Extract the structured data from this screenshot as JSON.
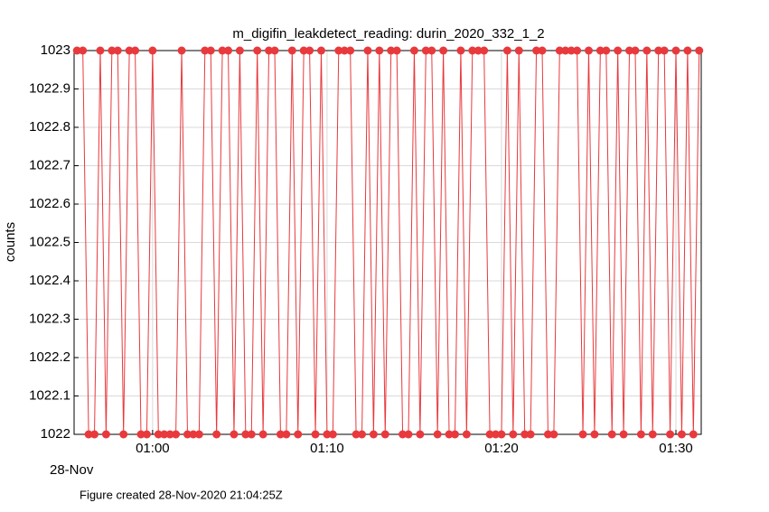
{
  "chart_data": {
    "type": "line",
    "title": "m_digifin_leakdetect_reading: durin_2020_332_1_2",
    "ylabel": "counts",
    "date_label": "28-Nov",
    "footer": "Figure created 28-Nov-2020 21:04:25Z",
    "color": "#e8393d",
    "grid": true,
    "xlim": [
      "00:55:30",
      "01:31:27"
    ],
    "xticks": [
      "01:00",
      "01:10",
      "01:20",
      "01:30"
    ],
    "ylim": [
      1022,
      1023
    ],
    "yticks": [
      1022,
      1022.1,
      1022.2,
      1022.3,
      1022.4,
      1022.5,
      1022.6,
      1022.7,
      1022.8,
      1022.9,
      1023
    ],
    "x": [
      "00:55:40",
      "00:56:00",
      "00:56:20",
      "00:56:40",
      "00:57:00",
      "00:57:20",
      "00:57:40",
      "00:58:00",
      "00:58:20",
      "00:58:40",
      "00:59:00",
      "00:59:20",
      "00:59:40",
      "01:00:00",
      "01:00:20",
      "01:00:40",
      "01:01:00",
      "01:01:20",
      "01:01:40",
      "01:02:00",
      "01:02:20",
      "01:02:40",
      "01:03:00",
      "01:03:20",
      "01:03:40",
      "01:04:00",
      "01:04:20",
      "01:04:40",
      "01:05:00",
      "01:05:20",
      "01:05:40",
      "01:06:00",
      "01:06:20",
      "01:06:40",
      "01:07:00",
      "01:07:20",
      "01:07:40",
      "01:08:00",
      "01:08:20",
      "01:08:40",
      "01:09:00",
      "01:09:20",
      "01:09:40",
      "01:10:00",
      "01:10:20",
      "01:10:40",
      "01:11:00",
      "01:11:20",
      "01:11:40",
      "01:12:00",
      "01:12:20",
      "01:12:40",
      "01:13:00",
      "01:13:20",
      "01:13:40",
      "01:14:00",
      "01:14:20",
      "01:14:40",
      "01:15:00",
      "01:15:20",
      "01:15:40",
      "01:16:00",
      "01:16:20",
      "01:16:40",
      "01:17:00",
      "01:17:20",
      "01:17:40",
      "01:18:00",
      "01:18:20",
      "01:18:40",
      "01:19:00",
      "01:19:20",
      "01:19:40",
      "01:20:00",
      "01:20:20",
      "01:20:40",
      "01:21:00",
      "01:21:20",
      "01:21:40",
      "01:22:00",
      "01:22:20",
      "01:22:40",
      "01:23:00",
      "01:23:20",
      "01:23:40",
      "01:24:00",
      "01:24:20",
      "01:24:40",
      "01:25:00",
      "01:25:20",
      "01:25:40",
      "01:26:00",
      "01:26:20",
      "01:26:40",
      "01:27:00",
      "01:27:20",
      "01:27:40",
      "01:28:00",
      "01:28:20",
      "01:28:40",
      "01:29:00",
      "01:29:20",
      "01:29:40",
      "01:30:00",
      "01:30:20",
      "01:30:40",
      "01:31:00",
      "01:31:20"
    ],
    "values": [
      1023,
      1023,
      1022,
      1022,
      1023,
      1022,
      1023,
      1023,
      1022,
      1023,
      1023,
      1022,
      1022,
      1023,
      1022,
      1022,
      1022,
      1022,
      1023,
      1022,
      1022,
      1022,
      1023,
      1023,
      1022,
      1023,
      1023,
      1022,
      1023,
      1022,
      1022,
      1023,
      1022,
      1023,
      1023,
      1022,
      1022,
      1023,
      1022,
      1023,
      1023,
      1022,
      1023,
      1022,
      1022,
      1023,
      1023,
      1023,
      1022,
      1022,
      1023,
      1022,
      1023,
      1022,
      1023,
      1023,
      1022,
      1022,
      1023,
      1022,
      1023,
      1023,
      1022,
      1023,
      1022,
      1022,
      1023,
      1022,
      1023,
      1023,
      1023,
      1022,
      1022,
      1022,
      1023,
      1022,
      1023,
      1022,
      1022,
      1023,
      1023,
      1022,
      1022,
      1023,
      1023,
      1023,
      1023,
      1022,
      1023,
      1022,
      1023,
      1023,
      1022,
      1023,
      1022,
      1023,
      1023,
      1022,
      1023,
      1022,
      1023,
      1023,
      1022,
      1023,
      1022,
      1023,
      1022,
      1023
    ]
  }
}
